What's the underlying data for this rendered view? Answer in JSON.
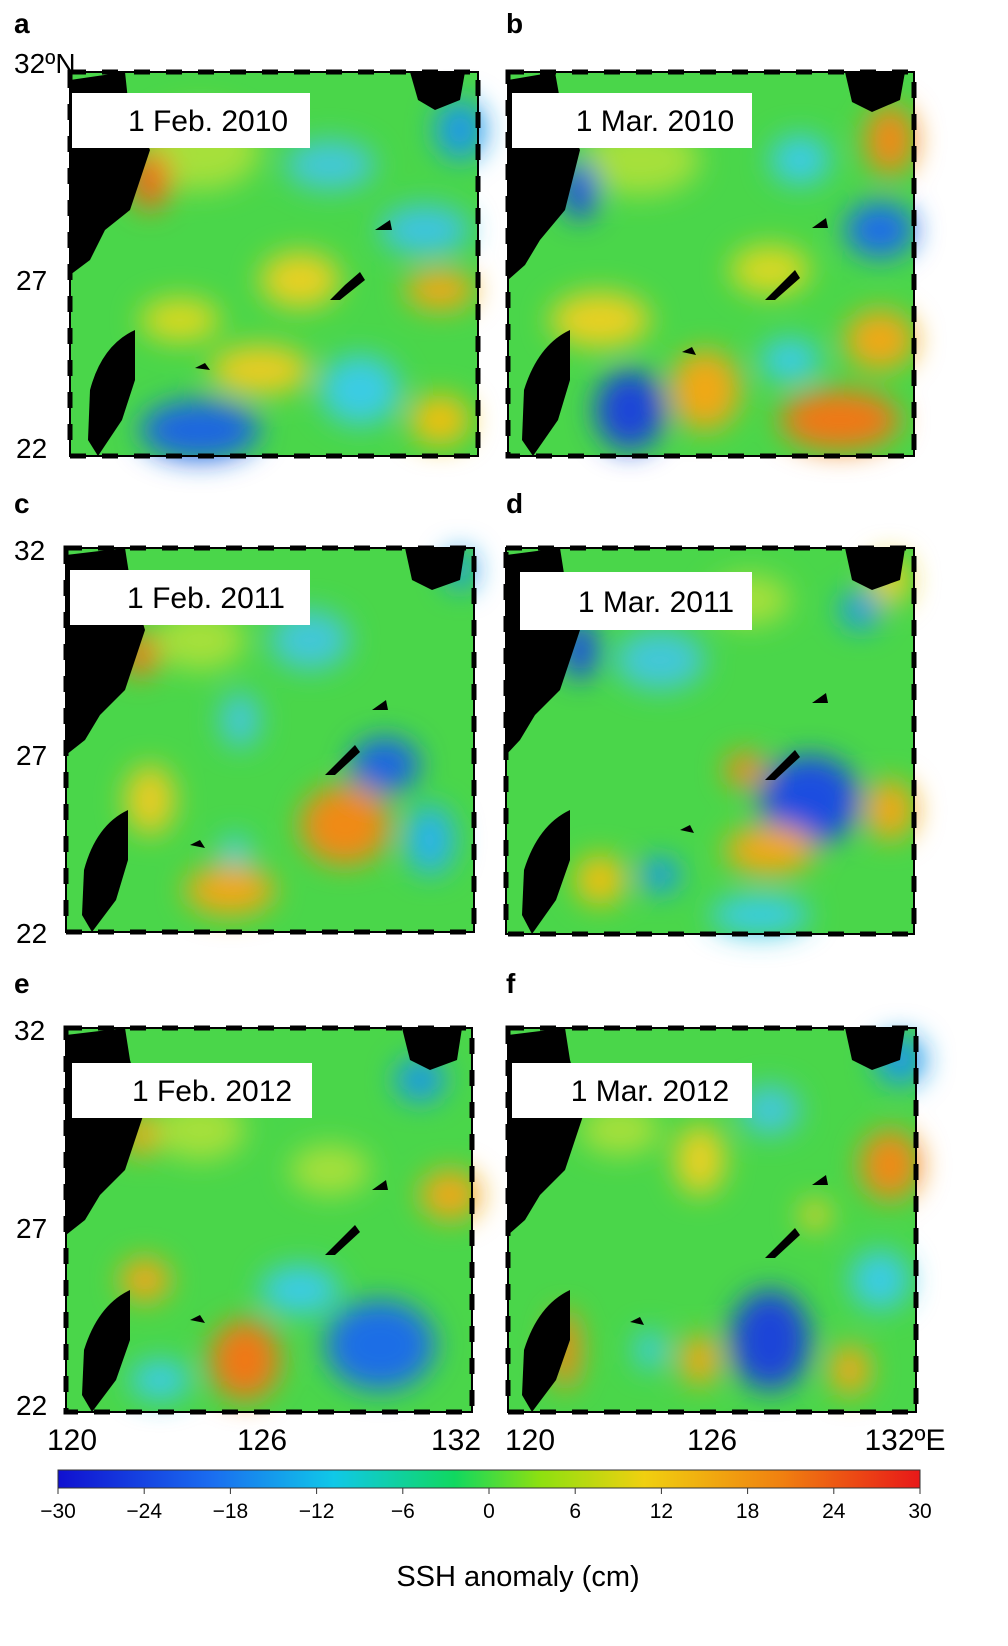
{
  "figure": {
    "panels": [
      {
        "letter": "a",
        "date": "1 Feb. 2010",
        "lat_top": "32ºN",
        "lat_mid": "27",
        "lat_bot": "22"
      },
      {
        "letter": "b",
        "date": "1 Mar. 2010"
      },
      {
        "letter": "c",
        "date": "1 Feb. 2011",
        "lat_top": "32",
        "lat_mid": "27",
        "lat_bot": "22"
      },
      {
        "letter": "d",
        "date": "1 Mar. 2011"
      },
      {
        "letter": "e",
        "date": "1 Feb. 2012",
        "lat_top": "32",
        "lat_mid": "27",
        "lat_bot": "22"
      },
      {
        "letter": "f",
        "date": "1 Mar. 2012"
      }
    ],
    "lon_labels_left": [
      "120",
      "126",
      "132"
    ],
    "lon_labels_right": [
      "120",
      "126",
      "132ºE"
    ]
  },
  "colorbar": {
    "ticks": [
      "−30",
      "−24",
      "−18",
      "−12",
      "−6",
      "0",
      "6",
      "12",
      "18",
      "24",
      "30"
    ],
    "title": "SSH anomaly (cm)",
    "colors": [
      "#1010d0",
      "#1a6ef0",
      "#10c8e8",
      "#10d848",
      "#9ae010",
      "#f0d010",
      "#f08010",
      "#e81818"
    ]
  }
}
